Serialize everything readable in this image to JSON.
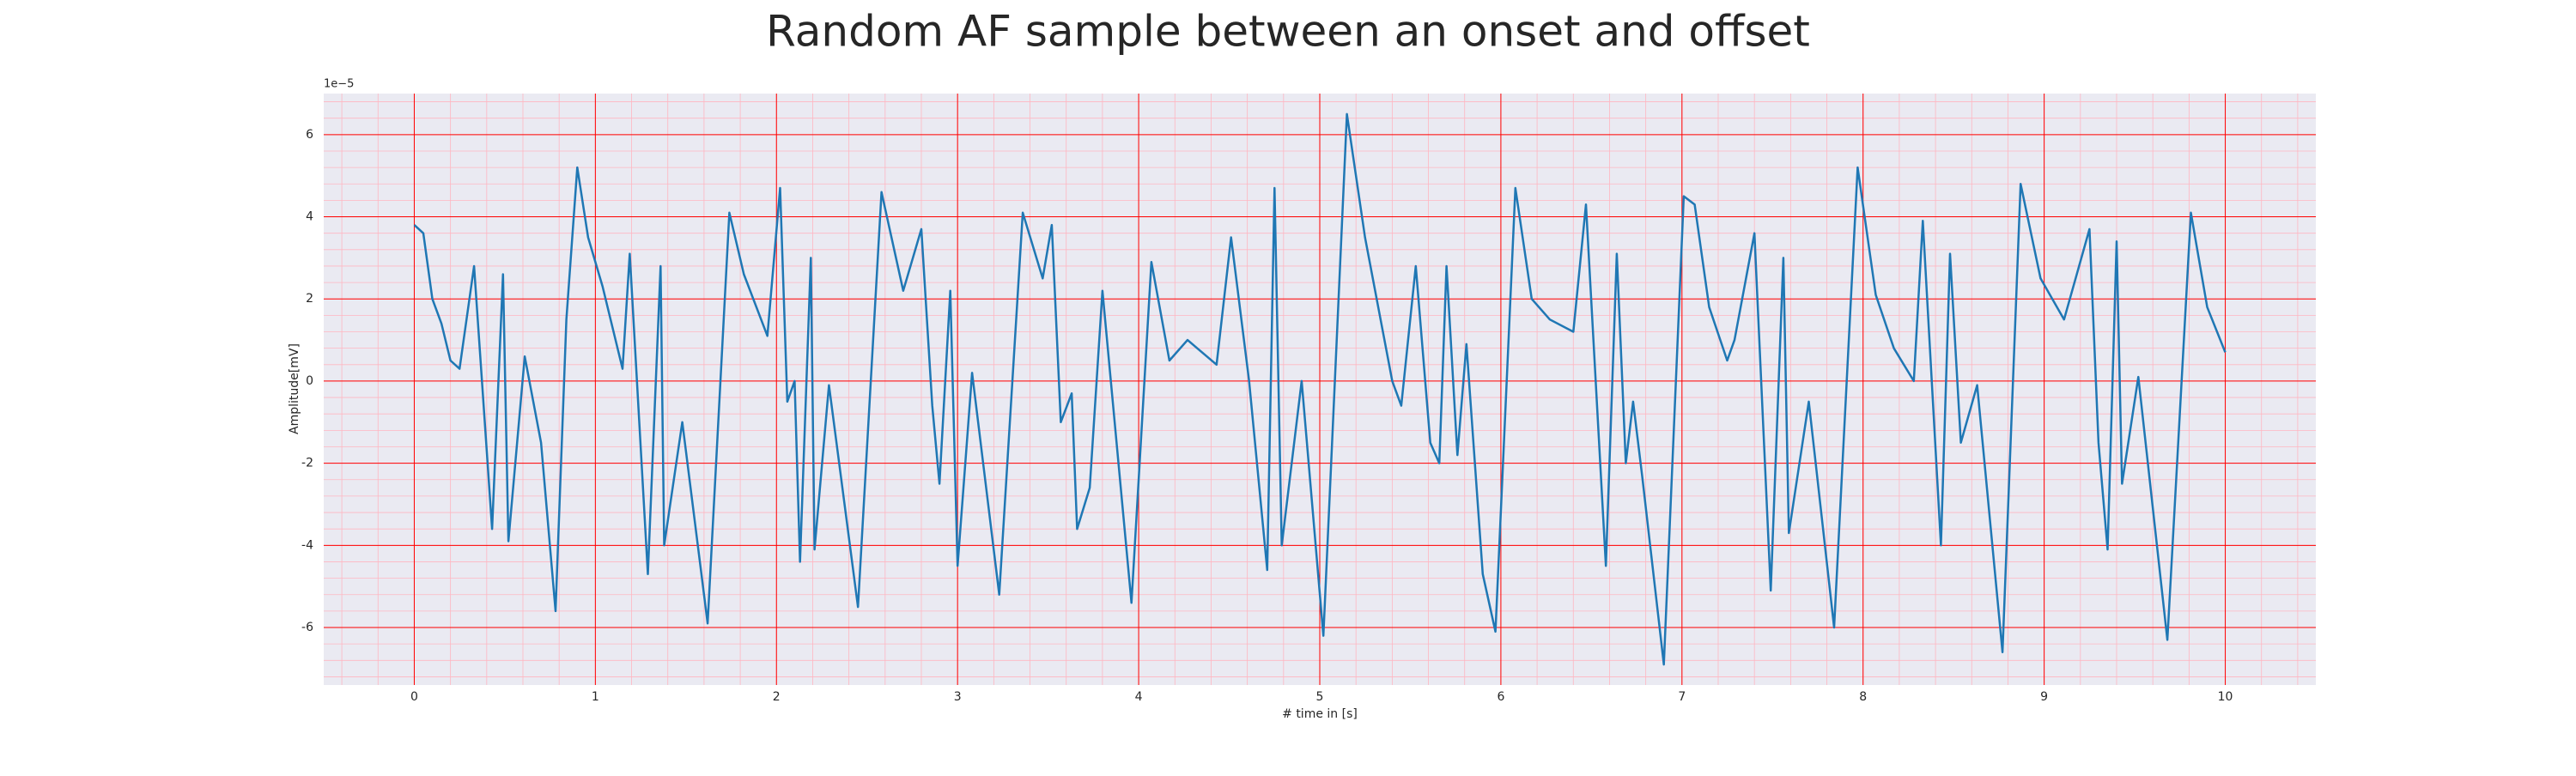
{
  "chart_data": {
    "type": "line",
    "title": "Random AF sample between an onset and offset",
    "x_label": "# time in [s]",
    "y_label": "Amplitude[mV]",
    "y_offset_label": "1e−5",
    "color": "#1f77b4",
    "grid": true,
    "xlim": [
      -0.5,
      10.5
    ],
    "ylim": [
      -7.4,
      7.0
    ],
    "xticks": [
      0,
      1,
      2,
      3,
      4,
      5,
      6,
      7,
      8,
      9,
      10
    ],
    "yticks": [
      -6,
      -4,
      -2,
      0,
      2,
      4,
      6
    ],
    "x": [
      0,
      0.05,
      0.1,
      0.15,
      0.2,
      0.25,
      0.33,
      0.43,
      0.49,
      0.52,
      0.61,
      0.7,
      0.78,
      0.84,
      0.9,
      0.96,
      1.04,
      1.15,
      1.19,
      1.29,
      1.36,
      1.38,
      1.48,
      1.62,
      1.74,
      1.82,
      1.95,
      2.02,
      2.06,
      2.1,
      2.13,
      2.19,
      2.21,
      2.29,
      2.45,
      2.58,
      2.7,
      2.8,
      2.86,
      2.9,
      2.96,
      3.0,
      3.08,
      3.23,
      3.36,
      3.47,
      3.52,
      3.57,
      3.63,
      3.66,
      3.73,
      3.8,
      3.96,
      4.07,
      4.17,
      4.27,
      4.43,
      4.51,
      4.61,
      4.71,
      4.75,
      4.79,
      4.9,
      5.02,
      5.15,
      5.25,
      5.4,
      5.45,
      5.53,
      5.61,
      5.66,
      5.7,
      5.76,
      5.81,
      5.9,
      5.97,
      6.08,
      6.17,
      6.27,
      6.4,
      6.47,
      6.58,
      6.64,
      6.69,
      6.73,
      6.78,
      6.9,
      7.01,
      7.07,
      7.15,
      7.25,
      7.29,
      7.4,
      7.49,
      7.56,
      7.59,
      7.7,
      7.84,
      7.97,
      8.07,
      8.17,
      8.28,
      8.33,
      8.43,
      8.48,
      8.54,
      8.63,
      8.77,
      8.87,
      8.98,
      9.11,
      9.25,
      9.3,
      9.35,
      9.4,
      9.43,
      9.52,
      9.68,
      9.81,
      9.9,
      10.0
    ],
    "values": [
      3.8,
      3.6,
      2.0,
      1.4,
      0.5,
      0.3,
      2.8,
      -3.6,
      2.6,
      -3.9,
      0.6,
      -1.5,
      -5.6,
      1.5,
      5.2,
      3.5,
      2.3,
      0.3,
      3.1,
      -4.7,
      2.8,
      -4.0,
      -1.0,
      -5.9,
      4.1,
      2.6,
      1.1,
      4.7,
      -0.5,
      0.0,
      -4.4,
      3.0,
      -4.1,
      -0.1,
      -5.5,
      4.6,
      2.2,
      3.7,
      -0.6,
      -2.5,
      2.2,
      -4.5,
      0.2,
      -5.2,
      4.1,
      2.5,
      3.8,
      -1.0,
      -0.3,
      -3.6,
      -2.6,
      2.2,
      -5.4,
      2.9,
      0.5,
      1.0,
      0.4,
      3.5,
      0.0,
      -4.6,
      4.7,
      -4.0,
      0.0,
      -6.2,
      6.5,
      3.5,
      0.0,
      -0.6,
      2.8,
      -1.5,
      -2.0,
      2.8,
      -1.8,
      0.9,
      -4.7,
      -6.1,
      4.7,
      2.0,
      1.5,
      1.2,
      4.3,
      -4.5,
      3.1,
      -2.0,
      -0.5,
      -2.3,
      -6.9,
      4.5,
      4.3,
      1.8,
      0.5,
      1.0,
      3.6,
      -5.1,
      3.0,
      -3.7,
      -0.5,
      -6.0,
      5.2,
      2.1,
      0.8,
      0.0,
      3.9,
      -4.0,
      3.1,
      -1.5,
      -0.1,
      -6.6,
      4.8,
      2.5,
      1.5,
      3.7,
      -1.5,
      -4.1,
      3.4,
      -2.5,
      0.1,
      -6.3,
      4.1,
      1.8,
      0.7
    ]
  }
}
